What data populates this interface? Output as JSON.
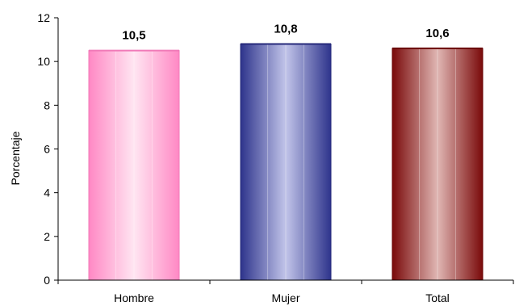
{
  "chart_data": {
    "type": "bar",
    "categories": [
      "Hombre",
      "Mujer",
      "Total"
    ],
    "values": [
      10.5,
      10.8,
      10.6
    ],
    "value_labels": [
      "10,5",
      "10,8",
      "10,6"
    ],
    "title": "",
    "xlabel": "",
    "ylabel": "Porcentaje",
    "ylim": [
      0,
      12
    ],
    "yticks": [
      0,
      2,
      4,
      6,
      8,
      10,
      12
    ],
    "grid": false,
    "legend": "none",
    "colors": [
      {
        "dark": "#ff88c4",
        "light": "#ffe2f0",
        "edge": "#f07ab8"
      },
      {
        "dark": "#2e348c",
        "light": "#bcbfe6",
        "edge": "#26297a"
      },
      {
        "dark": "#7a0a0a",
        "light": "#dcb0ad",
        "edge": "#6a0606"
      }
    ]
  }
}
